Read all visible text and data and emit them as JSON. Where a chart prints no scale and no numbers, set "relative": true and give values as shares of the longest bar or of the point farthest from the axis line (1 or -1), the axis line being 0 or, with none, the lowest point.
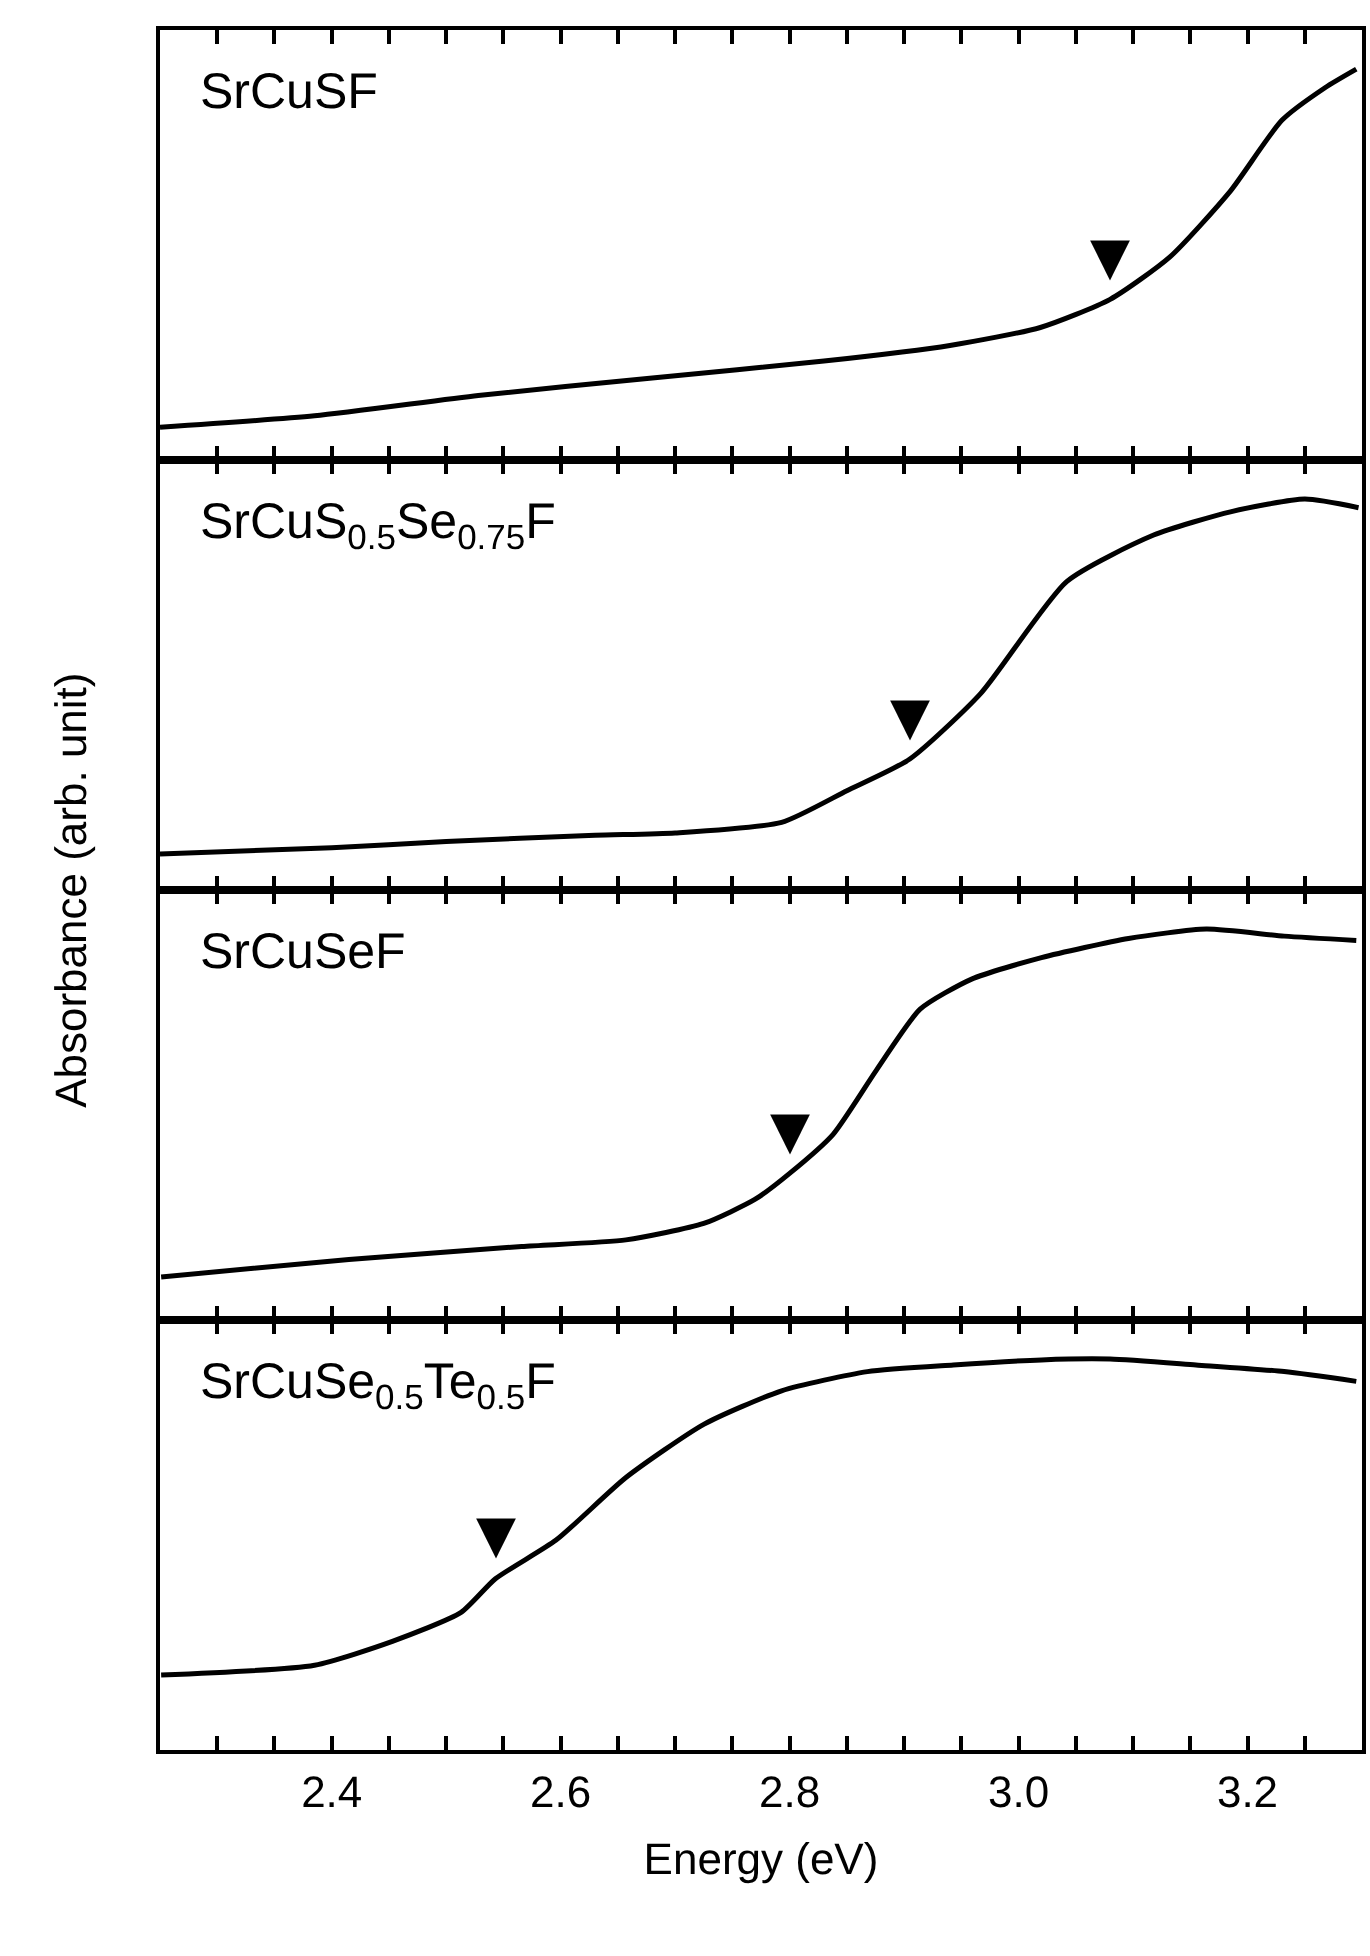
{
  "chart_data": [
    {
      "type": "line",
      "relative": true,
      "title": "SrCuSF",
      "ylabel": "Absorbance (arb. unit)",
      "tick_labels": false,
      "color": "#000000",
      "xlim": [
        2.25,
        3.3
      ],
      "xticks": [
        {
          "value": 2.25,
          "label": null
        },
        {
          "value": 2.3,
          "label": null
        },
        {
          "value": 2.35,
          "label": null
        },
        {
          "value": 2.4,
          "label": null
        },
        {
          "value": 2.45,
          "label": null
        },
        {
          "value": 2.5,
          "label": null
        },
        {
          "value": 2.55,
          "label": null
        },
        {
          "value": 2.6,
          "label": null
        },
        {
          "value": 2.65,
          "label": null
        },
        {
          "value": 2.7,
          "label": null
        },
        {
          "value": 2.75,
          "label": null
        },
        {
          "value": 2.8,
          "label": null
        },
        {
          "value": 2.85,
          "label": null
        },
        {
          "value": 2.9,
          "label": null
        },
        {
          "value": 2.95,
          "label": null
        },
        {
          "value": 3.0,
          "label": null
        },
        {
          "value": 3.05,
          "label": null
        },
        {
          "value": 3.1,
          "label": null
        },
        {
          "value": 3.15,
          "label": null
        },
        {
          "value": 3.2,
          "label": null
        },
        {
          "value": 3.25,
          "label": null
        }
      ],
      "x": [
        2.25,
        2.385,
        2.528,
        2.68,
        2.83,
        2.94,
        3.019,
        3.08,
        3.132,
        3.185,
        3.23,
        3.268,
        3.295
      ],
      "values": [
        0.084,
        0.113,
        0.165,
        0.21,
        0.253,
        0.293,
        0.339,
        0.411,
        0.519,
        0.688,
        0.869,
        0.953,
        1.0
      ],
      "annotations": [
        {
          "text": "▼",
          "x": 3.08,
          "y": 0.411
        }
      ]
    },
    {
      "type": "line",
      "relative": true,
      "title": "SrCuS$_{0.5}$Se$_{0.75}$F",
      "tick_labels": false,
      "color": "#000000",
      "xlim": [
        2.25,
        3.3
      ],
      "xticks": [
        {
          "value": 2.25,
          "label": null
        },
        {
          "value": 2.3,
          "label": null
        },
        {
          "value": 2.35,
          "label": null
        },
        {
          "value": 2.4,
          "label": null
        },
        {
          "value": 2.45,
          "label": null
        },
        {
          "value": 2.5,
          "label": null
        },
        {
          "value": 2.55,
          "label": null
        },
        {
          "value": 2.6,
          "label": null
        },
        {
          "value": 2.65,
          "label": null
        },
        {
          "value": 2.7,
          "label": null
        },
        {
          "value": 2.75,
          "label": null
        },
        {
          "value": 2.8,
          "label": null
        },
        {
          "value": 2.85,
          "label": null
        },
        {
          "value": 2.9,
          "label": null
        },
        {
          "value": 2.95,
          "label": null
        },
        {
          "value": 3.0,
          "label": null
        },
        {
          "value": 3.05,
          "label": null
        },
        {
          "value": 3.1,
          "label": null
        },
        {
          "value": 3.15,
          "label": null
        },
        {
          "value": 3.2,
          "label": null
        },
        {
          "value": 3.25,
          "label": null
        }
      ],
      "x": [
        2.25,
        2.4,
        2.5,
        2.63,
        2.7,
        2.793,
        2.85,
        2.905,
        2.967,
        3.042,
        3.118,
        3.186,
        3.25,
        3.297
      ],
      "values": [
        0.092,
        0.108,
        0.124,
        0.14,
        0.146,
        0.173,
        0.254,
        0.335,
        0.503,
        0.789,
        0.908,
        0.968,
        1.0,
        0.978
      ],
      "annotations": [
        {
          "text": "▼",
          "x": 2.905,
          "y": 0.335
        }
      ]
    },
    {
      "type": "line",
      "relative": true,
      "title": "SrCuSeF",
      "tick_labels": false,
      "color": "#000000",
      "xlim": [
        2.25,
        3.3
      ],
      "xticks": [
        {
          "value": 2.25,
          "label": null
        },
        {
          "value": 2.3,
          "label": null
        },
        {
          "value": 2.35,
          "label": null
        },
        {
          "value": 2.4,
          "label": null
        },
        {
          "value": 2.45,
          "label": null
        },
        {
          "value": 2.5,
          "label": null
        },
        {
          "value": 2.55,
          "label": null
        },
        {
          "value": 2.6,
          "label": null
        },
        {
          "value": 2.65,
          "label": null
        },
        {
          "value": 2.7,
          "label": null
        },
        {
          "value": 2.75,
          "label": null
        },
        {
          "value": 2.8,
          "label": null
        },
        {
          "value": 2.85,
          "label": null
        },
        {
          "value": 2.9,
          "label": null
        },
        {
          "value": 2.95,
          "label": null
        },
        {
          "value": 3.0,
          "label": null
        },
        {
          "value": 3.05,
          "label": null
        },
        {
          "value": 3.1,
          "label": null
        },
        {
          "value": 3.15,
          "label": null
        },
        {
          "value": 3.2,
          "label": null
        },
        {
          "value": 3.25,
          "label": null
        }
      ],
      "x": [
        2.251,
        2.415,
        2.566,
        2.657,
        2.725,
        2.77,
        2.8,
        2.838,
        2.876,
        2.914,
        2.959,
        3.02,
        3.096,
        3.164,
        3.232,
        3.295
      ],
      "values": [
        0.11,
        0.155,
        0.188,
        0.205,
        0.247,
        0.309,
        0.375,
        0.475,
        0.64,
        0.795,
        0.872,
        0.927,
        0.976,
        1.0,
        0.982,
        0.971
      ],
      "annotations": [
        {
          "text": "▼",
          "x": 2.8,
          "y": 0.375
        }
      ]
    },
    {
      "type": "line",
      "relative": true,
      "title": "SrCuSe$_{0.5}$Te$_{0.5}$F",
      "xlabel": "Energy (eV)",
      "tick_labels": "x",
      "color": "#000000",
      "xlim": [
        2.25,
        3.3
      ],
      "xticks": [
        {
          "value": 2.25,
          "label": null
        },
        {
          "value": 2.3,
          "label": null
        },
        {
          "value": 2.35,
          "label": null
        },
        2.4,
        {
          "value": 2.45,
          "label": null
        },
        {
          "value": 2.5,
          "label": null
        },
        {
          "value": 2.55,
          "label": null
        },
        2.6,
        {
          "value": 2.65,
          "label": null
        },
        {
          "value": 2.7,
          "label": null
        },
        {
          "value": 2.75,
          "label": null
        },
        2.8,
        {
          "value": 2.85,
          "label": null
        },
        {
          "value": 2.9,
          "label": null
        },
        {
          "value": 2.95,
          "label": null
        },
        {
          "value": 3.0,
          "label": "3.0"
        },
        {
          "value": 3.05,
          "label": null
        },
        {
          "value": 3.1,
          "label": null
        },
        {
          "value": 3.15,
          "label": null
        },
        3.2,
        {
          "value": 3.25,
          "label": null
        }
      ],
      "x": [
        2.251,
        2.385,
        2.453,
        2.513,
        2.543,
        2.596,
        2.657,
        2.725,
        2.793,
        2.868,
        2.943,
        3.02,
        3.08,
        3.155,
        3.232,
        3.295
      ],
      "values": [
        0.192,
        0.217,
        0.278,
        0.352,
        0.438,
        0.537,
        0.697,
        0.833,
        0.919,
        0.968,
        0.985,
        0.998,
        1.0,
        0.985,
        0.968,
        0.943
      ],
      "annotations": [
        {
          "text": "▼",
          "x": 2.543,
          "y": 0.438
        }
      ]
    }
  ]
}
